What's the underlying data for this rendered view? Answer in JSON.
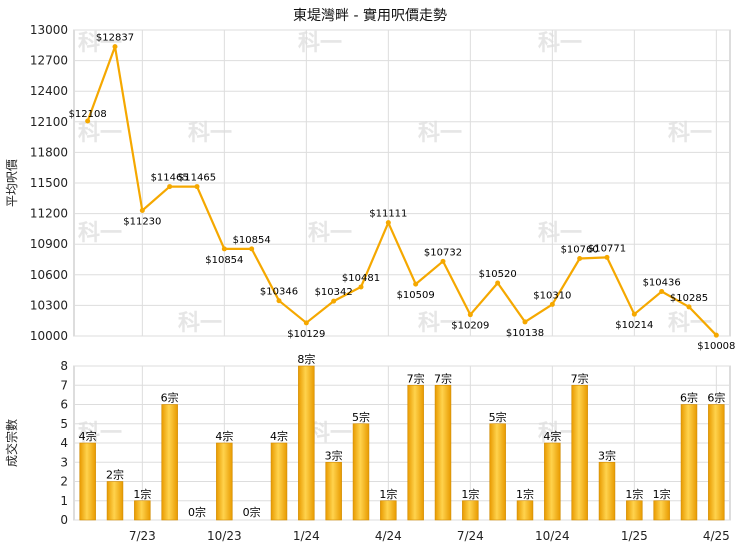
{
  "chart_data": [
    {
      "type": "line",
      "title": "東堤灣畔 - 實用呎價走勢",
      "ylabel": "平均呎價",
      "ylim": [
        10000,
        13000
      ],
      "y_ticks": [
        10000,
        10300,
        10600,
        10900,
        11200,
        11500,
        11800,
        12100,
        12400,
        12700,
        13000
      ],
      "x_tick_labels": [
        "7/23",
        "10/23",
        "1/24",
        "4/24",
        "7/24",
        "10/24",
        "1/25",
        "4/25"
      ],
      "grid": true,
      "line_color": "#f5a800",
      "series": [
        {
          "values": [
            12108,
            12837,
            11230,
            11465,
            11465,
            10854,
            10854,
            10346,
            10129,
            10342,
            10481,
            11111,
            10509,
            10732,
            10209,
            10520,
            10138,
            10310,
            10760,
            10771,
            10214,
            10436,
            10285,
            10008
          ],
          "labels": [
            "$12108",
            "$12837",
            "$11230",
            "$11465",
            "$11465",
            "$10854",
            "$10854",
            "$10346",
            "$10129",
            "$10342",
            "$10481",
            "$11111",
            "$10509",
            "$10732",
            "$10209",
            "$10520",
            "$10138",
            "$10310",
            "$10760",
            "$10771",
            "$10214",
            "$10436",
            "$10285",
            "$10008"
          ],
          "missing_volume_months": [
            4,
            6
          ]
        }
      ]
    },
    {
      "type": "bar",
      "ylabel": "成交宗數",
      "ylim": [
        0,
        8
      ],
      "y_ticks": [
        0,
        1,
        2,
        3,
        4,
        5,
        6,
        7,
        8
      ],
      "x_tick_labels": [
        "7/23",
        "10/23",
        "1/24",
        "4/24",
        "7/24",
        "10/24",
        "1/25",
        "4/25"
      ],
      "grid": true,
      "bar_color": "#f5b400",
      "series": [
        {
          "values": [
            4,
            2,
            1,
            6,
            0,
            4,
            0,
            4,
            8,
            3,
            5,
            1,
            7,
            7,
            1,
            5,
            1,
            4,
            7,
            3,
            1,
            1,
            6,
            6
          ],
          "labels": [
            "4宗",
            "2宗",
            "1宗",
            "6宗",
            "0宗",
            "4宗",
            "0宗",
            "4宗",
            "8宗",
            "3宗",
            "5宗",
            "1宗",
            "7宗",
            "7宗",
            "1宗",
            "5宗",
            "1宗",
            "4宗",
            "7宗",
            "3宗",
            "1宗",
            "1宗",
            "6宗",
            "6宗"
          ]
        }
      ]
    }
  ],
  "watermark": "科一"
}
